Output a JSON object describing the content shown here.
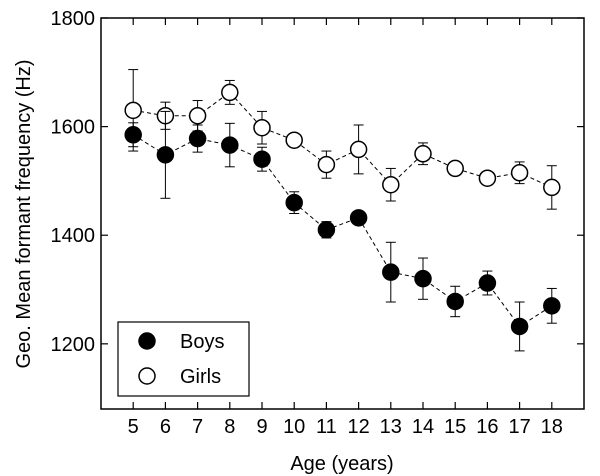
{
  "chart_data": {
    "type": "scatter",
    "title": "",
    "xlabel": "Age (years)",
    "ylabel": "Geo. Mean formant frequency (Hz)",
    "xlim": [
      4,
      19
    ],
    "ylim": [
      1080,
      1800
    ],
    "x_ticks": [
      5,
      6,
      7,
      8,
      9,
      10,
      11,
      12,
      13,
      14,
      15,
      16,
      17,
      18
    ],
    "x_tick_labels": [
      "5",
      "6",
      "7",
      "8",
      "9",
      "10",
      "11",
      "12",
      "13",
      "14",
      "15",
      "16",
      "17",
      "18"
    ],
    "y_ticks": [
      1200,
      1400,
      1600,
      1800
    ],
    "y_tick_labels": [
      "1200",
      "1400",
      "1600",
      "1800"
    ],
    "grid": false,
    "legend_position": "bottom-left",
    "x": [
      5,
      6,
      7,
      8,
      9,
      10,
      11,
      12,
      13,
      14,
      15,
      16,
      17,
      18
    ],
    "series": [
      {
        "name": "Boys",
        "marker": "filled-circle",
        "line": "dashed",
        "values": [
          1585,
          1548,
          1578,
          1566,
          1540,
          1460,
          1410,
          1432,
          1332,
          1320,
          1278,
          1312,
          1232,
          1270
        ],
        "error": [
          22,
          80,
          25,
          40,
          22,
          20,
          15,
          12,
          55,
          38,
          28,
          22,
          45,
          32
        ]
      },
      {
        "name": "Girls",
        "marker": "open-circle",
        "line": "dashed",
        "values": [
          1630,
          1620,
          1620,
          1663,
          1598,
          1575,
          1530,
          1558,
          1493,
          1550,
          1523,
          1505,
          1515,
          1488
        ],
        "error": [
          75,
          25,
          28,
          22,
          30,
          12,
          25,
          45,
          30,
          20,
          12,
          10,
          20,
          40
        ]
      }
    ],
    "colors": {
      "marker_stroke": "#000000",
      "filled": "#000000",
      "open": "#ffffff"
    }
  }
}
